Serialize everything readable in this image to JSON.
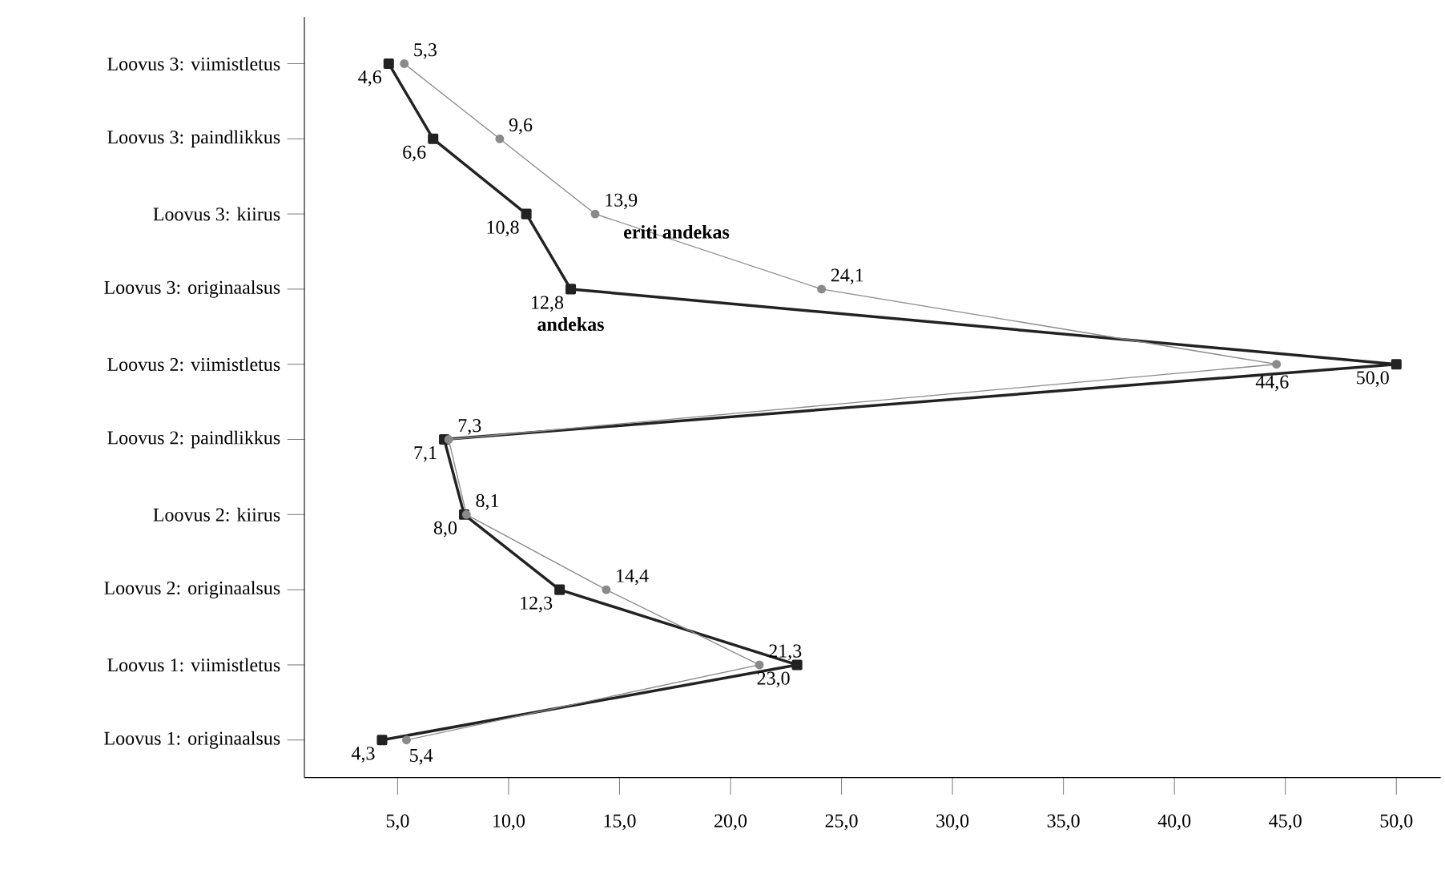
{
  "chart_data": {
    "type": "line",
    "orientation": "horizontal",
    "categories": [
      "Loovus 3: viimistletus",
      "Loovus 3: paindlikkus",
      "Loovus 3: kiirus",
      "Loovus 3: originaalsus",
      "Loovus 2: viimistletus",
      "Loovus 2: paindlikkus",
      "Loovus 2: kiirus",
      "Loovus 2: originaalsus",
      "Loovus 1: viimistletus",
      "Loovus 1: originaalsus"
    ],
    "series": [
      {
        "name": "andekas",
        "color": "#222222",
        "marker": "square",
        "values": [
          4.6,
          6.6,
          10.8,
          12.8,
          50.0,
          7.1,
          8.0,
          12.3,
          23.0,
          4.3
        ],
        "value_labels": [
          "4,6",
          "6,6",
          "10,8",
          "12,8",
          "50,0",
          "7,1",
          "8,0",
          "12,3",
          "23,0",
          "4,3"
        ]
      },
      {
        "name": "eriti andekas",
        "color": "#8a8a8a",
        "marker": "circle",
        "values": [
          5.3,
          9.6,
          13.9,
          24.1,
          44.6,
          7.3,
          8.1,
          14.4,
          21.3,
          5.4
        ],
        "value_labels": [
          "5,3",
          "9,6",
          "13,9",
          "24,1",
          "44,6",
          "7,3",
          "8,1",
          "14,4",
          "21,3",
          "5,4"
        ]
      }
    ],
    "xlim": [
      0.8,
      52
    ],
    "xticks": [
      {
        "value": 5,
        "label": "5,0"
      },
      {
        "value": 10,
        "label": "10,0"
      },
      {
        "value": 15,
        "label": "15,0"
      },
      {
        "value": 20,
        "label": "20,0"
      },
      {
        "value": 25,
        "label": "25,0"
      },
      {
        "value": 30,
        "label": "30,0"
      },
      {
        "value": 35,
        "label": "35,0"
      },
      {
        "value": 40,
        "label": "40,0"
      },
      {
        "value": 45,
        "label": "45,0"
      },
      {
        "value": 50,
        "label": "50,0"
      }
    ],
    "legend": false,
    "grid": false
  }
}
